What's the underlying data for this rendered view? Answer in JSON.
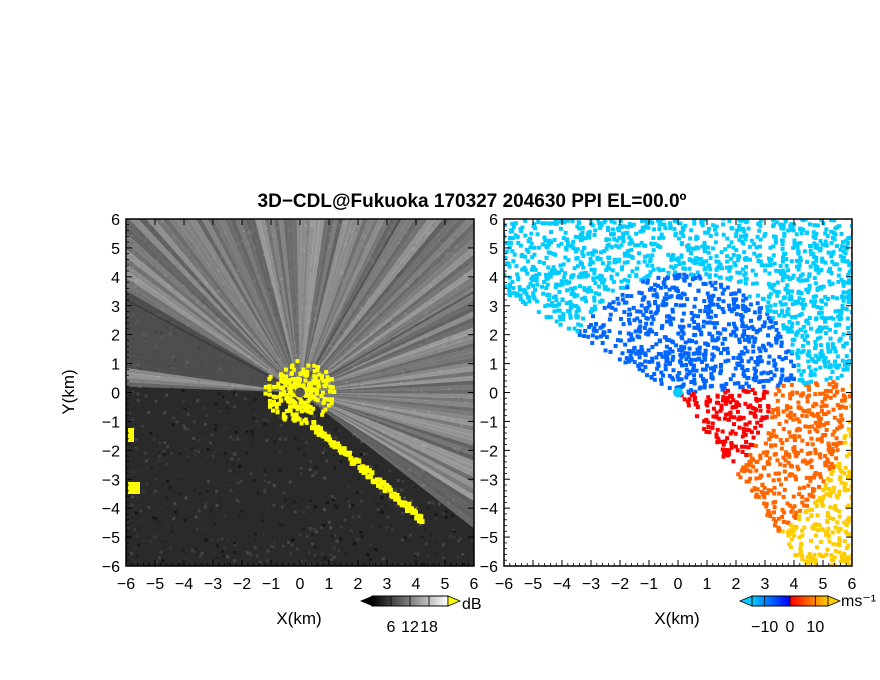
{
  "chart_data": {
    "title": "3D−CDL@Fukuoka 170327 204630 PPI EL=00.0º",
    "panels": [
      {
        "type": "heatmap",
        "quantity": "SNR",
        "xlabel": "X(km)",
        "ylabel": "Y(km)",
        "xlim": [
          -6,
          6
        ],
        "ylim": [
          -6,
          6
        ],
        "ticks": [
          "−6",
          "−5",
          "−4",
          "−3",
          "−2",
          "−1",
          "0",
          "1",
          "2",
          "3",
          "4",
          "5",
          "6"
        ],
        "colormap": "grayscale",
        "background_color": "#2a2a2a",
        "highlight_color": "#ffff00",
        "colorbar": {
          "unit": "dB",
          "tick_labels": [
            "6",
            "12",
            "18"
          ],
          "ticks": [
            6,
            12,
            18
          ],
          "range": [
            0,
            24
          ]
        }
      },
      {
        "type": "heatmap",
        "quantity": "radial velocity",
        "xlabel": "X(km)",
        "ylabel": "",
        "xlim": [
          -6,
          6
        ],
        "ylim": [
          -6,
          6
        ],
        "ticks": [
          "−6",
          "−5",
          "−4",
          "−3",
          "−2",
          "−1",
          "0",
          "1",
          "2",
          "3",
          "4",
          "5",
          "6"
        ],
        "colormap": [
          "#00ccff",
          "#0066ff",
          "#0000ff",
          "#ff0000",
          "#ff6600",
          "#ffcc00"
        ],
        "colorbar": {
          "unit": "ms⁻¹",
          "tick_labels": [
            "−10",
            "0",
            "10"
          ],
          "ticks": [
            -10,
            0,
            10
          ],
          "range": [
            -15,
            15
          ]
        }
      }
    ]
  }
}
